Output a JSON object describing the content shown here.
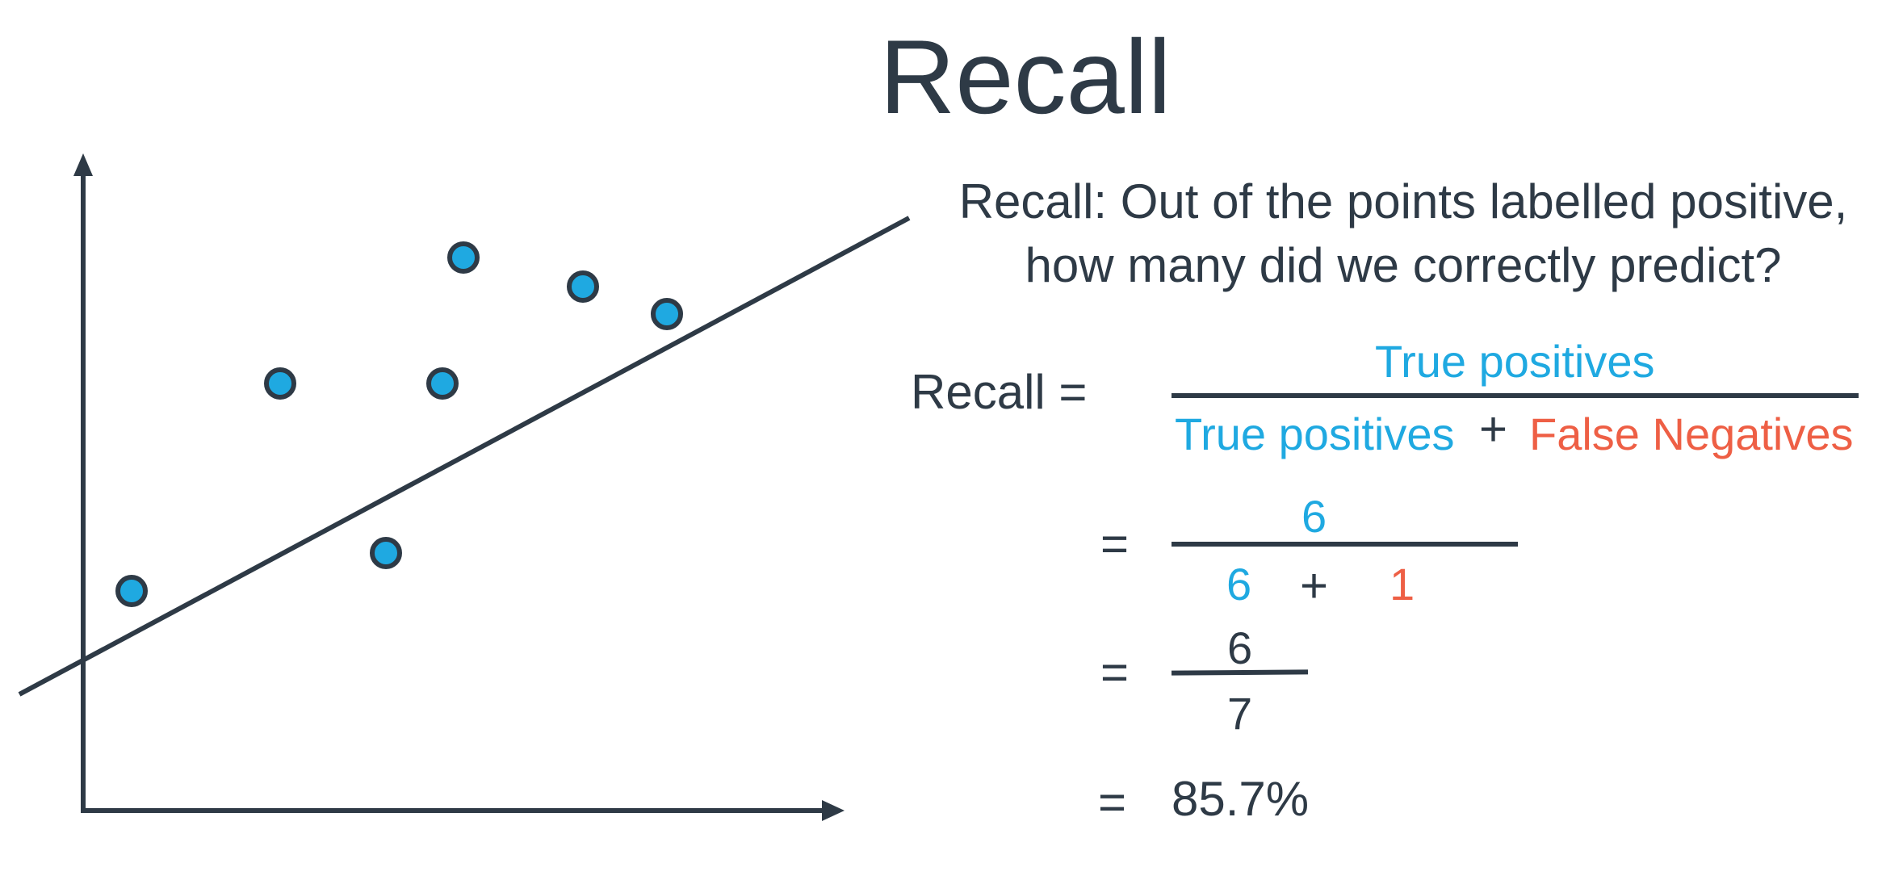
{
  "colors": {
    "dark": "#2e3a46",
    "positive": "#1fa9e1",
    "negative": "#ee5f45"
  },
  "title": "Recall",
  "definition": {
    "line1": "Recall: Out of the points labelled positive,",
    "line2": "how many did we correctly predict?"
  },
  "formula": {
    "lhs": "Recall =",
    "numerator": "True positives",
    "denominator_left": "True positives",
    "plus": "+",
    "denominator_right": "False Negatives"
  },
  "step1": {
    "equals": "=",
    "numerator": "6",
    "denominator_left": "6",
    "plus": "+",
    "denominator_right": "1"
  },
  "step2": {
    "equals": "=",
    "numerator": "6",
    "denominator": "7"
  },
  "result": {
    "equals": "=",
    "value": "85.7%"
  },
  "diagram": {
    "icons": [
      "y-axis-arrow-icon",
      "x-axis-arrow-icon"
    ],
    "positive_point_count": 7
  }
}
